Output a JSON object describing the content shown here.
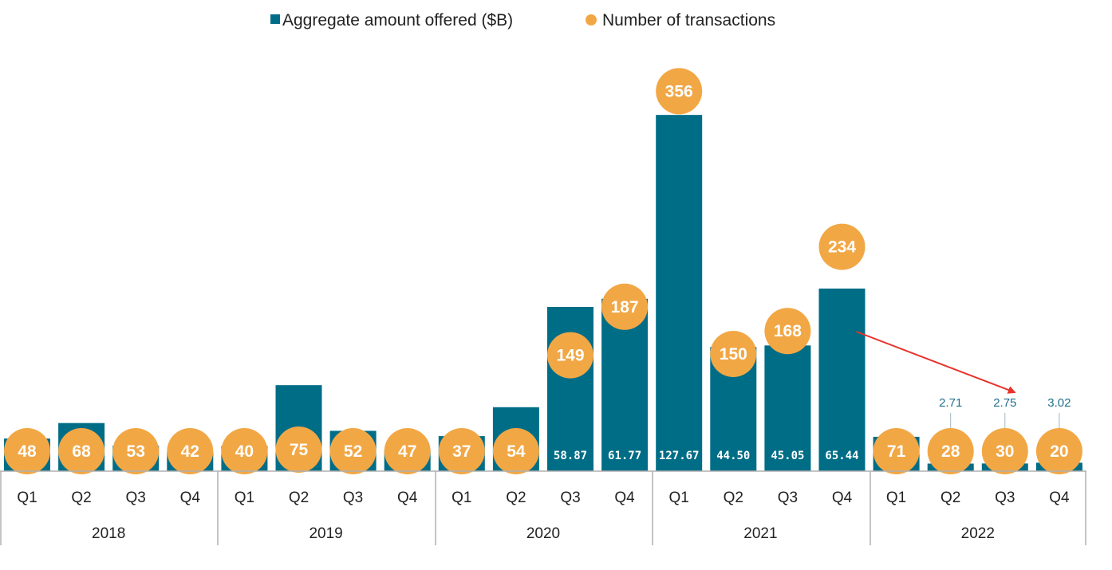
{
  "chart_data": {
    "type": "bar",
    "legend": {
      "placement": "top-center",
      "items": [
        {
          "label": "Aggregate amount offered ($B)",
          "marker": "square",
          "color": "#006d87"
        },
        {
          "label": "Number of transactions",
          "marker": "circle",
          "color": "#f2a745"
        }
      ]
    },
    "years": [
      "2018",
      "2019",
      "2020",
      "2021",
      "2022"
    ],
    "quarter_labels": [
      "Q1",
      "Q2",
      "Q3",
      "Q4"
    ],
    "categories": [
      "2018 Q1",
      "2018 Q2",
      "2018 Q3",
      "2018 Q4",
      "2019 Q1",
      "2019 Q2",
      "2019 Q3",
      "2019 Q4",
      "2020 Q1",
      "2020 Q2",
      "2020 Q3",
      "2020 Q4",
      "2021 Q1",
      "2021 Q2",
      "2021 Q3",
      "2021 Q4",
      "2022 Q1",
      "2022 Q2",
      "2022 Q3",
      "2022 Q4"
    ],
    "series": [
      {
        "name": "Aggregate amount offered ($B)",
        "type": "bar",
        "color": "#006d87",
        "values": [
          11.68,
          17.24,
          9.11,
          6.88,
          9.02,
          30.81,
          14.45,
          7.56,
          12.55,
          22.92,
          58.87,
          61.77,
          127.67,
          44.5,
          45.05,
          65.44,
          12.31,
          2.71,
          2.75,
          3.02
        ],
        "labels": [
          "11.68",
          "17.24",
          "9.11",
          "6.88",
          "9.02",
          "30.81",
          "14.45",
          "7.56",
          "12.55",
          "22.92",
          "58.87",
          "61.77",
          "127.67",
          "44.50",
          "45.05",
          "65.44",
          "12.31",
          "2.71",
          "2.75",
          "3.02"
        ]
      },
      {
        "name": "Number of transactions",
        "type": "scatter",
        "color": "#f2a745",
        "values": [
          48,
          68,
          53,
          42,
          40,
          75,
          52,
          47,
          37,
          54,
          149,
          187,
          356,
          150,
          168,
          234,
          71,
          28,
          30,
          20
        ]
      }
    ],
    "annotation": {
      "type": "arrow",
      "from_category": "2021 Q4",
      "to_category": "2022 Q3",
      "color": "#e8322b"
    },
    "grid": false
  }
}
